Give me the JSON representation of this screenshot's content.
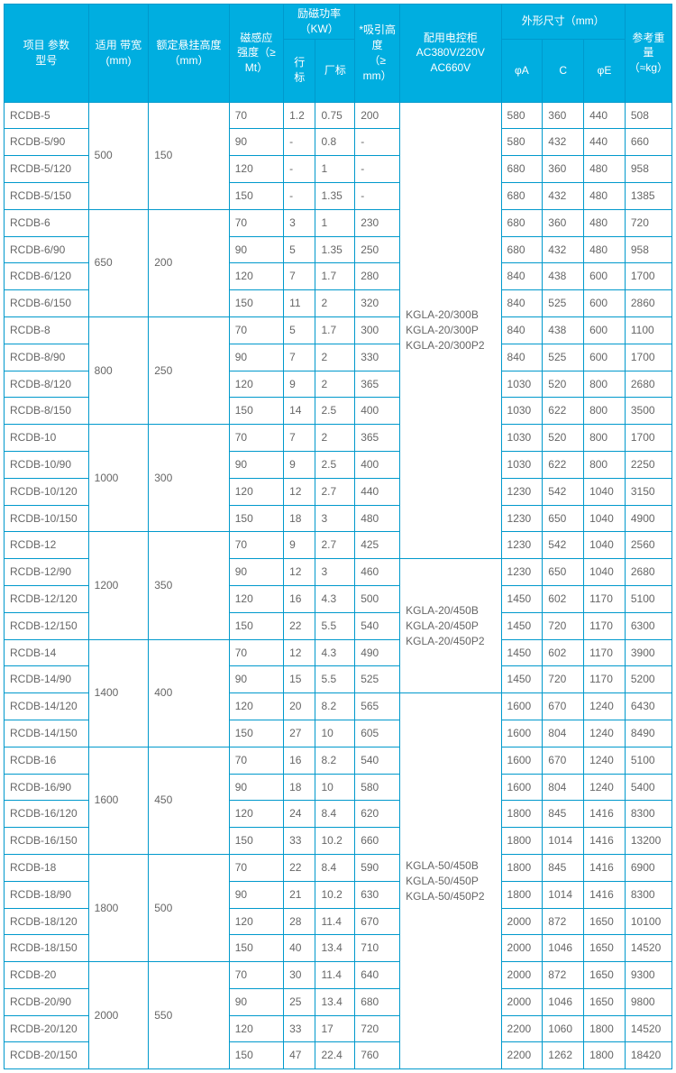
{
  "colors": {
    "header_bg": "#00aee0",
    "header_fg": "#ffffff",
    "border": "#0099cc",
    "body_fg": "#666666"
  },
  "header": {
    "model": "项目 参数\n型号",
    "belt": "适用 带宽\n(mm)",
    "height": "额定悬挂高度\n（mm）",
    "mag": "磁感应\n强度（≥\nMt）",
    "power": "励磁功率\n（KW）",
    "power_sub_a": "行\n标",
    "power_sub_b": "厂标",
    "attract": "*吸引高\n度\n（≥\nmm）",
    "cabinet": "配用电控柜\nAC380V/220V\nAC660V",
    "dims": "外形尺寸（mm）",
    "dims_a": "φA",
    "dims_b": "C",
    "dims_c": "φE",
    "weight": "参考重\n量\n（≈kg）"
  },
  "widths": {
    "c0": 90,
    "c1": 60,
    "c2": 80,
    "c3": 56,
    "c4": 32,
    "c5": 40,
    "c6": 46,
    "c7": 106,
    "c8": 42,
    "c9": 42,
    "c10": 42,
    "c11": 48
  },
  "cabinets": {
    "g1": "KGLA-20/300B\nKGLA-20/300P\nKGLA-20/300P2",
    "g2": "KGLA-20/450B\nKGLA-20/450P\nKGLA-20/450P2",
    "g3": "KGLA-50/450B\nKGLA-50/450P\nKGLA-50/450P2"
  },
  "groups": [
    {
      "belt": "500",
      "h": "150",
      "rows": [
        {
          "m": "RCDB-5",
          "mt": "70",
          "pa": "1.2",
          "pb": "0.75",
          "att": "200",
          "a": "580",
          "b": "360",
          "c": "440",
          "w": "508"
        },
        {
          "m": "RCDB-5/90",
          "mt": "90",
          "pa": "-",
          "pb": "0.8",
          "att": "-",
          "a": "580",
          "b": "432",
          "c": "440",
          "w": "660"
        },
        {
          "m": "RCDB-5/120",
          "mt": "120",
          "pa": "-",
          "pb": "1",
          "att": "-",
          "a": "680",
          "b": "360",
          "c": "480",
          "w": "958"
        },
        {
          "m": "RCDB-5/150",
          "mt": "150",
          "pa": "-",
          "pb": "1.35",
          "att": "-",
          "a": "680",
          "b": "432",
          "c": "480",
          "w": "1385"
        }
      ]
    },
    {
      "belt": "650",
      "h": "200",
      "rows": [
        {
          "m": "RCDB-6",
          "mt": "70",
          "pa": "3",
          "pb": "1",
          "att": "230",
          "a": "680",
          "b": "360",
          "c": "480",
          "w": "720"
        },
        {
          "m": "RCDB-6/90",
          "mt": "90",
          "pa": "5",
          "pb": "1.35",
          "att": "250",
          "a": "680",
          "b": "432",
          "c": "480",
          "w": "958"
        },
        {
          "m": "RCDB-6/120",
          "mt": "120",
          "pa": "7",
          "pb": "1.7",
          "att": "280",
          "a": "840",
          "b": "438",
          "c": "600",
          "w": "1700"
        },
        {
          "m": "RCDB-6/150",
          "mt": "150",
          "pa": "11",
          "pb": "2",
          "att": "320",
          "a": "840",
          "b": "525",
          "c": "600",
          "w": "2860"
        }
      ]
    },
    {
      "belt": "800",
      "h": "250",
      "rows": [
        {
          "m": "RCDB-8",
          "mt": "70",
          "pa": "5",
          "pb": "1.7",
          "att": "300",
          "a": "840",
          "b": "438",
          "c": "600",
          "w": "1100"
        },
        {
          "m": "RCDB-8/90",
          "mt": "90",
          "pa": "7",
          "pb": "2",
          "att": "330",
          "a": "840",
          "b": "525",
          "c": "600",
          "w": "1700"
        },
        {
          "m": "RCDB-8/120",
          "mt": "120",
          "pa": "9",
          "pb": "2",
          "att": "365",
          "a": "1030",
          "b": "520",
          "c": "800",
          "w": "2680"
        },
        {
          "m": "RCDB-8/150",
          "mt": "150",
          "pa": "14",
          "pb": "2.5",
          "att": "400",
          "a": "1030",
          "b": "622",
          "c": "800",
          "w": "3500"
        }
      ]
    },
    {
      "belt": "1000",
      "h": "300",
      "rows": [
        {
          "m": "RCDB-10",
          "mt": "70",
          "pa": "7",
          "pb": "2",
          "att": "365",
          "a": "1030",
          "b": "520",
          "c": "800",
          "w": "1700"
        },
        {
          "m": "RCDB-10/90",
          "mt": "90",
          "pa": "9",
          "pb": "2.5",
          "att": "400",
          "a": "1030",
          "b": "622",
          "c": "800",
          "w": "2250"
        },
        {
          "m": "RCDB-10/120",
          "mt": "120",
          "pa": "12",
          "pb": "2.7",
          "att": "440",
          "a": "1230",
          "b": "542",
          "c": "1040",
          "w": "3150"
        },
        {
          "m": "RCDB-10/150",
          "mt": "150",
          "pa": "18",
          "pb": "3",
          "att": "480",
          "a": "1230",
          "b": "650",
          "c": "1040",
          "w": "4900"
        }
      ]
    },
    {
      "belt": "1200",
      "h": "350",
      "rows": [
        {
          "m": "RCDB-12",
          "mt": "70",
          "pa": "9",
          "pb": "2.7",
          "att": "425",
          "a": "1230",
          "b": "542",
          "c": "1040",
          "w": "2560"
        },
        {
          "m": "RCDB-12/90",
          "mt": "90",
          "pa": "12",
          "pb": "3",
          "att": "460",
          "a": "1230",
          "b": "650",
          "c": "1040",
          "w": "2680"
        },
        {
          "m": "RCDB-12/120",
          "mt": "120",
          "pa": "16",
          "pb": "4.3",
          "att": "500",
          "a": "1450",
          "b": "602",
          "c": "1170",
          "w": "5100"
        },
        {
          "m": "RCDB-12/150",
          "mt": "150",
          "pa": "22",
          "pb": "5.5",
          "att": "540",
          "a": "1450",
          "b": "720",
          "c": "1170",
          "w": "6300"
        }
      ]
    },
    {
      "belt": "1400",
      "h": "400",
      "rows": [
        {
          "m": "RCDB-14",
          "mt": "70",
          "pa": "12",
          "pb": "4.3",
          "att": "490",
          "a": "1450",
          "b": "602",
          "c": "1170",
          "w": "3900"
        },
        {
          "m": "RCDB-14/90",
          "mt": "90",
          "pa": "15",
          "pb": "5.5",
          "att": "525",
          "a": "1450",
          "b": "720",
          "c": "1170",
          "w": "5200"
        },
        {
          "m": "RCDB-14/120",
          "mt": "120",
          "pa": "20",
          "pb": "8.2",
          "att": "565",
          "a": "1600",
          "b": "670",
          "c": "1240",
          "w": "6430"
        },
        {
          "m": "RCDB-14/150",
          "mt": "150",
          "pa": "27",
          "pb": "10",
          "att": "605",
          "a": "1600",
          "b": "804",
          "c": "1240",
          "w": "8490"
        }
      ]
    },
    {
      "belt": "1600",
      "h": "450",
      "rows": [
        {
          "m": "RCDB-16",
          "mt": "70",
          "pa": "16",
          "pb": "8.2",
          "att": "540",
          "a": "1600",
          "b": "670",
          "c": "1240",
          "w": "5100"
        },
        {
          "m": "RCDB-16/90",
          "mt": "90",
          "pa": "18",
          "pb": "10",
          "att": "580",
          "a": "1600",
          "b": "804",
          "c": "1240",
          "w": "5400"
        },
        {
          "m": "RCDB-16/120",
          "mt": "120",
          "pa": "24",
          "pb": "8.4",
          "att": "620",
          "a": "1800",
          "b": "845",
          "c": "1416",
          "w": "8300"
        },
        {
          "m": "RCDB-16/150",
          "mt": "150",
          "pa": "33",
          "pb": "10.2",
          "att": "660",
          "a": "1800",
          "b": "1014",
          "c": "1416",
          "w": "13200"
        }
      ]
    },
    {
      "belt": "1800",
      "h": "500",
      "rows": [
        {
          "m": "RCDB-18",
          "mt": "70",
          "pa": "22",
          "pb": "8.4",
          "att": "590",
          "a": "1800",
          "b": "845",
          "c": "1416",
          "w": "6900"
        },
        {
          "m": "RCDB-18/90",
          "mt": "90",
          "pa": "21",
          "pb": "10.2",
          "att": "630",
          "a": "1800",
          "b": "1014",
          "c": "1416",
          "w": "8300"
        },
        {
          "m": "RCDB-18/120",
          "mt": "120",
          "pa": "28",
          "pb": "11.4",
          "att": "670",
          "a": "2000",
          "b": "872",
          "c": "1650",
          "w": "10100"
        },
        {
          "m": "RCDB-18/150",
          "mt": "150",
          "pa": "40",
          "pb": "13.4",
          "att": "710",
          "a": "2000",
          "b": "1046",
          "c": "1650",
          "w": "14520"
        }
      ]
    },
    {
      "belt": "2000",
      "h": "550",
      "rows": [
        {
          "m": "RCDB-20",
          "mt": "70",
          "pa": "30",
          "pb": "11.4",
          "att": "640",
          "a": "2000",
          "b": "872",
          "c": "1650",
          "w": "9300"
        },
        {
          "m": "RCDB-20/90",
          "mt": "90",
          "pa": "25",
          "pb": "13.4",
          "att": "680",
          "a": "2000",
          "b": "1046",
          "c": "1650",
          "w": "9800"
        },
        {
          "m": "RCDB-20/120",
          "mt": "120",
          "pa": "33",
          "pb": "17",
          "att": "720",
          "a": "2200",
          "b": "1060",
          "c": "1800",
          "w": "14520"
        },
        {
          "m": "RCDB-20/150",
          "mt": "150",
          "pa": "47",
          "pb": "22.4",
          "att": "760",
          "a": "2200",
          "b": "1262",
          "c": "1800",
          "w": "18420"
        }
      ]
    }
  ],
  "cabinet_spans": [
    {
      "startGroup": 0,
      "startRow": 0,
      "span": 17,
      "key": "g1"
    },
    {
      "startGroup": 4,
      "startRow": 1,
      "span": 5,
      "key": "g2"
    },
    {
      "startGroup": 5,
      "startRow": 2,
      "span": 14,
      "key": "g3"
    }
  ]
}
